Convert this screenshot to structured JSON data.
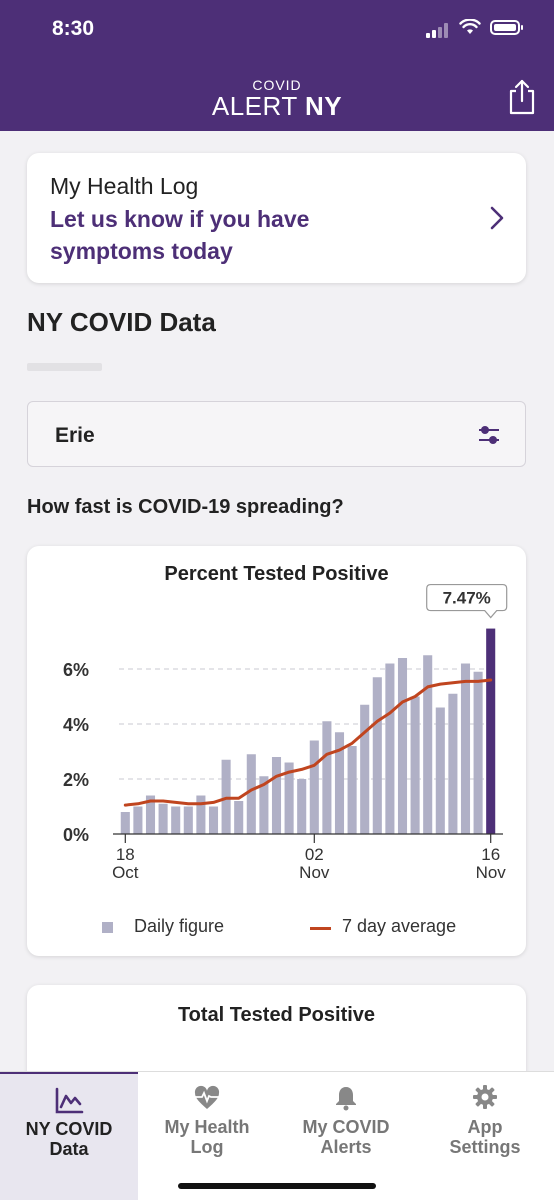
{
  "status_bar": {
    "time": "8:30"
  },
  "header": {
    "logo_small": "COVID",
    "logo_alert": "ALERT",
    "logo_ny": "NY"
  },
  "health_log": {
    "title": "My Health Log",
    "subtitle_line1": "Let us know if you have",
    "subtitle_line2": "symptoms today"
  },
  "section_title": "NY COVID Data",
  "county_select": {
    "value": "Erie"
  },
  "question": "How fast is COVID-19 spreading?",
  "chart": {
    "title": "Percent Tested Positive",
    "tooltip": "7.47%",
    "legend_daily": "Daily figure",
    "legend_avg": "7 day average"
  },
  "total_card": {
    "title": "Total Tested Positive"
  },
  "tabs": [
    {
      "line1": "NY COVID",
      "line2": "Data"
    },
    {
      "line1": "My Health",
      "line2": "Log"
    },
    {
      "line1": "My COVID",
      "line2": "Alerts"
    },
    {
      "line1": "App",
      "line2": "Settings"
    }
  ],
  "colors": {
    "brand_purple": "#4d2f77",
    "bar_gray": "#b0b0c6",
    "avg_line": "#c0451f",
    "highlight_bar": "#4d2f77"
  },
  "chart_data": {
    "type": "bar",
    "title": "Percent Tested Positive",
    "y_ticks": [
      "0%",
      "2%",
      "4%",
      "6%"
    ],
    "ylim": [
      0,
      8
    ],
    "x_ticks": [
      {
        "index": 0,
        "day": "18",
        "month": "Oct"
      },
      {
        "index": 15,
        "day": "02",
        "month": "Nov"
      },
      {
        "index": 29,
        "day": "16",
        "month": "Nov"
      }
    ],
    "categories": [
      "Oct 18",
      "Oct 19",
      "Oct 20",
      "Oct 21",
      "Oct 22",
      "Oct 23",
      "Oct 24",
      "Oct 25",
      "Oct 26",
      "Oct 27",
      "Oct 28",
      "Oct 29",
      "Oct 30",
      "Oct 31",
      "Nov 01",
      "Nov 02",
      "Nov 03",
      "Nov 04",
      "Nov 05",
      "Nov 06",
      "Nov 07",
      "Nov 08",
      "Nov 09",
      "Nov 10",
      "Nov 11",
      "Nov 12",
      "Nov 13",
      "Nov 14",
      "Nov 15",
      "Nov 16"
    ],
    "series": [
      {
        "name": "Daily figure",
        "values": [
          0.8,
          1.0,
          1.4,
          1.1,
          1.0,
          1.0,
          1.4,
          1.0,
          2.7,
          1.2,
          2.9,
          2.1,
          2.8,
          2.6,
          2.0,
          3.4,
          4.1,
          3.7,
          3.2,
          4.7,
          5.7,
          6.2,
          6.4,
          5.0,
          6.5,
          4.6,
          5.1,
          6.2,
          5.9,
          7.47
        ]
      },
      {
        "name": "7 day average",
        "values": [
          1.05,
          1.1,
          1.2,
          1.2,
          1.15,
          1.1,
          1.1,
          1.15,
          1.3,
          1.3,
          1.6,
          1.8,
          2.1,
          2.25,
          2.35,
          2.5,
          2.9,
          3.05,
          3.3,
          3.7,
          4.1,
          4.4,
          4.8,
          5.0,
          5.35,
          5.45,
          5.5,
          5.55,
          5.55,
          5.6
        ]
      }
    ],
    "highlight": {
      "index": 29,
      "label": "7.47%"
    },
    "grid": true,
    "legend": "bottom"
  }
}
